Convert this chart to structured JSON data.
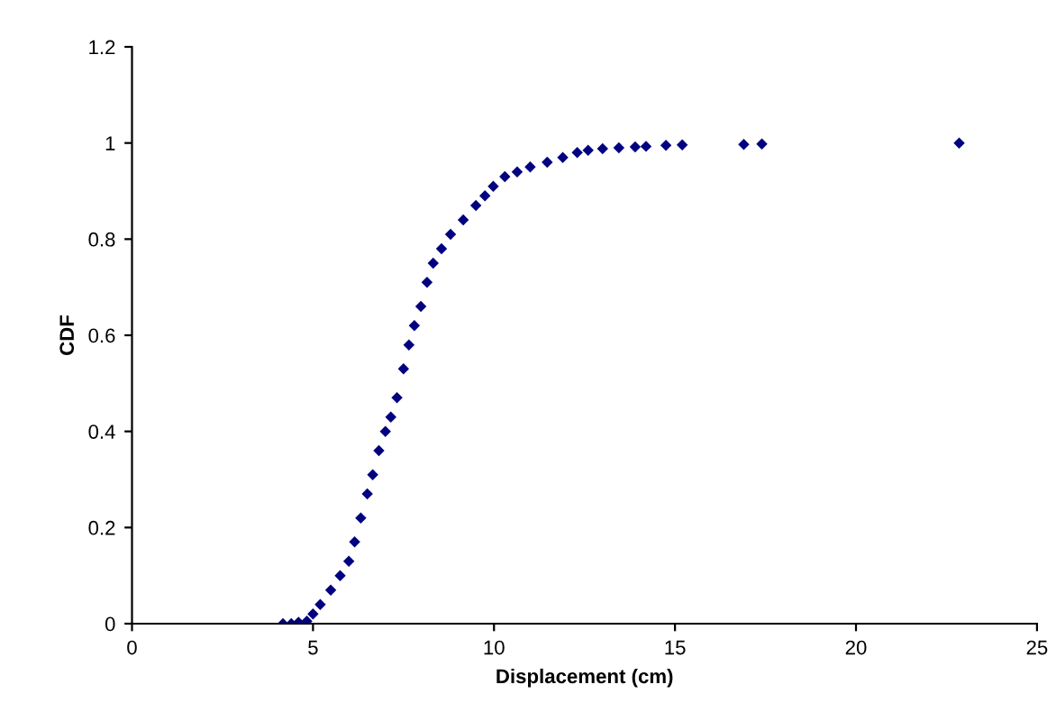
{
  "chart_data": {
    "type": "scatter",
    "xlabel": "Displacement (cm)",
    "ylabel": "CDF",
    "xlim": [
      0,
      25
    ],
    "ylim": [
      0,
      1.2
    ],
    "xticks": [
      0,
      5,
      10,
      15,
      20,
      25
    ],
    "yticks": [
      0,
      0.2,
      0.4,
      0.6,
      0.8,
      1,
      1.2
    ],
    "marker": "diamond",
    "grid": false,
    "legend": false,
    "x": [
      4.17,
      4.4,
      4.6,
      4.83,
      5.0,
      5.2,
      5.49,
      5.75,
      5.99,
      6.15,
      6.32,
      6.5,
      6.65,
      6.82,
      7.0,
      7.15,
      7.32,
      7.5,
      7.65,
      7.8,
      7.98,
      8.15,
      8.32,
      8.55,
      8.8,
      9.15,
      9.5,
      9.75,
      9.98,
      10.3,
      10.64,
      11.0,
      11.47,
      11.9,
      12.3,
      12.6,
      13.0,
      13.45,
      13.9,
      14.2,
      14.75,
      15.2,
      16.9,
      17.4,
      22.85
    ],
    "series": [
      {
        "color": "#000080",
        "values": [
          0,
          0,
          0.003,
          0.005,
          0.02,
          0.04,
          0.07,
          0.1,
          0.13,
          0.17,
          0.22,
          0.27,
          0.31,
          0.36,
          0.4,
          0.43,
          0.47,
          0.53,
          0.58,
          0.62,
          0.66,
          0.71,
          0.75,
          0.78,
          0.81,
          0.84,
          0.87,
          0.89,
          0.91,
          0.93,
          0.94,
          0.95,
          0.96,
          0.97,
          0.98,
          0.985,
          0.988,
          0.99,
          0.992,
          0.993,
          0.995,
          0.996,
          0.997,
          0.998,
          1
        ]
      }
    ]
  }
}
